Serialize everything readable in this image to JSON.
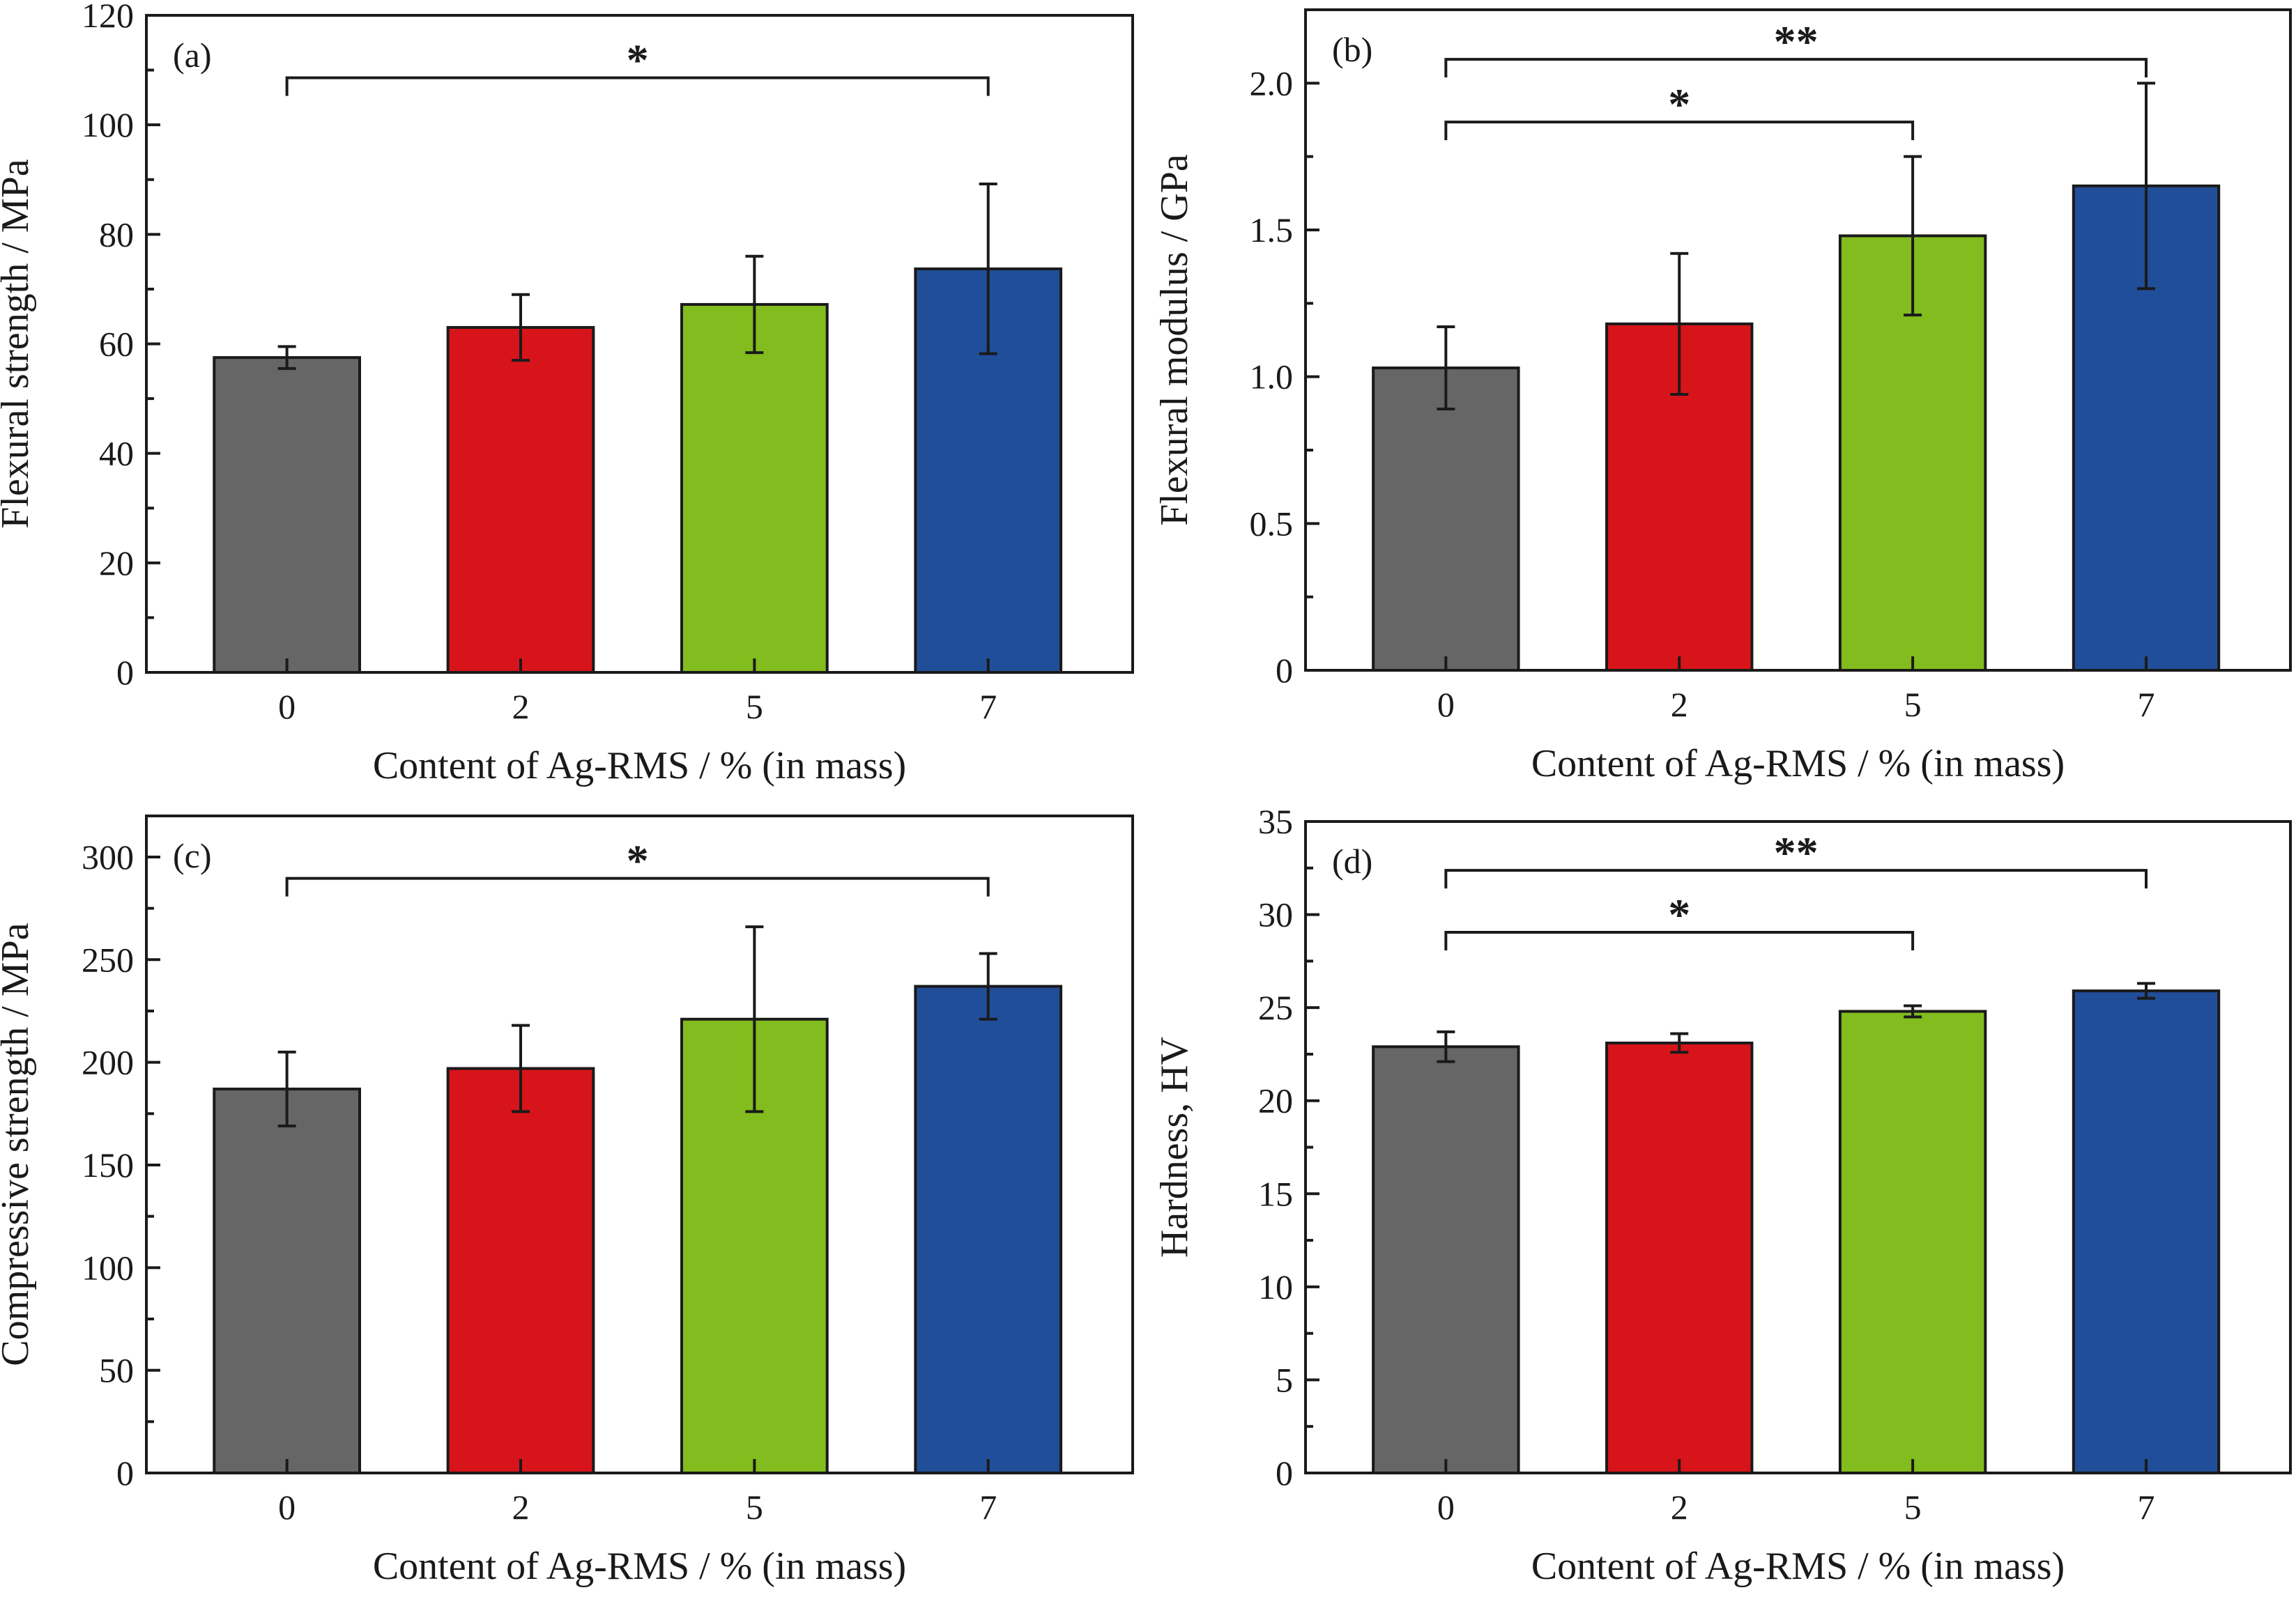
{
  "chart_data": [
    {
      "type": "bar",
      "panel_label": "(a)",
      "categories": [
        "0",
        "2",
        "5",
        "7"
      ],
      "values": [
        57.5,
        63,
        67.2,
        73.7
      ],
      "errors": [
        2,
        6,
        8.8,
        15.5
      ],
      "xlabel": "Content of Ag-RMS / % (in mass)",
      "ylabel": "Flexural strength / MPa",
      "ylim": [
        0,
        120
      ],
      "yticks": [
        0,
        20,
        40,
        60,
        80,
        100,
        120
      ],
      "ytick_labels": [
        "0",
        "20",
        "40",
        "60",
        "80",
        "100",
        "120"
      ],
      "minor_step": 10,
      "significance": [
        {
          "from": 0,
          "to": 3,
          "label": "*"
        }
      ]
    },
    {
      "type": "bar",
      "panel_label": "(b)",
      "categories": [
        "0",
        "2",
        "5",
        "7"
      ],
      "values": [
        1.03,
        1.18,
        1.48,
        1.65
      ],
      "errors": [
        0.14,
        0.24,
        0.27,
        0.35
      ],
      "xlabel": "Content of Ag-RMS / % (in mass)",
      "ylabel": "Flexural modulus / GPa",
      "ylim": [
        0,
        2.25
      ],
      "yticks": [
        0,
        0.5,
        1.0,
        1.5,
        2.0
      ],
      "ytick_labels": [
        "0",
        "0.5",
        "1.0",
        "1.5",
        "2.0"
      ],
      "minor_step": 0.25,
      "significance": [
        {
          "from": 0,
          "to": 2,
          "label": "*"
        },
        {
          "from": 0,
          "to": 3,
          "label": "**"
        }
      ]
    },
    {
      "type": "bar",
      "panel_label": "(c)",
      "categories": [
        "0",
        "2",
        "5",
        "7"
      ],
      "values": [
        187,
        197,
        221,
        237
      ],
      "errors": [
        18,
        21,
        45,
        16
      ],
      "xlabel": "Content of Ag-RMS / % (in mass)",
      "ylabel": "Compressive strength / MPa",
      "ylim": [
        0,
        320
      ],
      "yticks": [
        0,
        50,
        100,
        150,
        200,
        250,
        300
      ],
      "ytick_labels": [
        "0",
        "50",
        "100",
        "150",
        "200",
        "250",
        "300"
      ],
      "minor_step": 25,
      "significance": [
        {
          "from": 0,
          "to": 3,
          "label": "*"
        }
      ]
    },
    {
      "type": "bar",
      "panel_label": "(d)",
      "categories": [
        "0",
        "2",
        "5",
        "7"
      ],
      "values": [
        22.9,
        23.1,
        24.8,
        25.9
      ],
      "errors": [
        0.8,
        0.5,
        0.3,
        0.4
      ],
      "xlabel": "Content of Ag-RMS / % (in mass)",
      "ylabel": "Hardness, HV",
      "ylim": [
        0,
        35
      ],
      "yticks": [
        0,
        5,
        10,
        15,
        20,
        25,
        30,
        35
      ],
      "ytick_labels": [
        "0",
        "5",
        "10",
        "15",
        "20",
        "25",
        "30",
        "35"
      ],
      "minor_step": 2.5,
      "significance": [
        {
          "from": 0,
          "to": 2,
          "label": "*"
        },
        {
          "from": 0,
          "to": 3,
          "label": "**"
        }
      ]
    }
  ],
  "colors": {
    "bars": [
      "#666666",
      "#d7141a",
      "#82bc1e",
      "#214e98"
    ],
    "axis": "#1a1a1a"
  }
}
